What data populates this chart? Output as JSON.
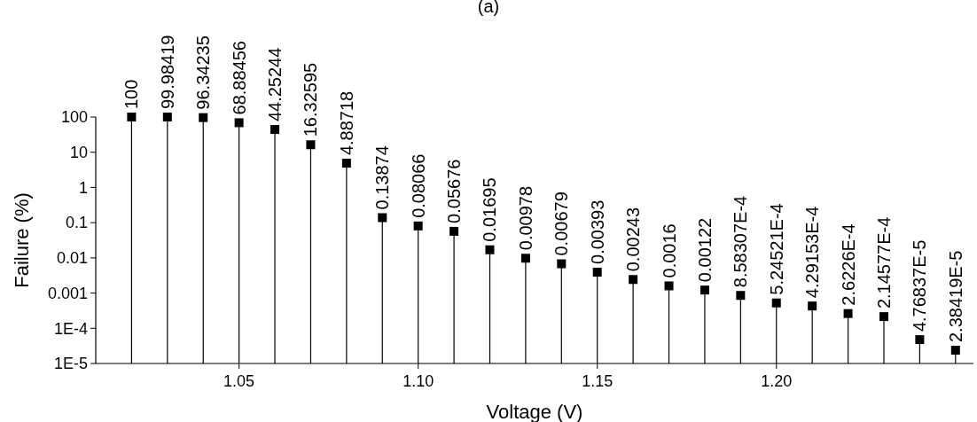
{
  "chart_data": {
    "type": "lollipop",
    "title": "(a)",
    "xlabel": "Voltage (V)",
    "ylabel": "Failure (%)",
    "log": "y",
    "marker": "square",
    "color": "#000000",
    "x": [
      1.02,
      1.03,
      1.04,
      1.05,
      1.06,
      1.07,
      1.08,
      1.09,
      1.1,
      1.11,
      1.12,
      1.13,
      1.14,
      1.15,
      1.16,
      1.17,
      1.18,
      1.19,
      1.2,
      1.21,
      1.22,
      1.23,
      1.24,
      1.25
    ],
    "values": [
      100,
      99.98419,
      96.34235,
      68.88456,
      44.25244,
      16.32595,
      4.88718,
      0.13874,
      0.08066,
      0.05676,
      0.01695,
      0.00978,
      0.00679,
      0.00393,
      0.00243,
      0.0016,
      0.00122,
      0.000858307,
      0.000524521,
      0.000429153,
      0.00026226,
      0.000214577,
      4.76837e-05,
      2.38419e-05
    ],
    "value_labels": [
      "100",
      "99.98419",
      "96.34235",
      "68.88456",
      "44.25244",
      "16.32595",
      "4.88718",
      "0.13874",
      "0.08066",
      "0.05676",
      "0.01695",
      "0.00978",
      "0.00679",
      "0.00393",
      "0.00243",
      "0.0016",
      "0.00122",
      "8.58307E-4",
      "5.24521E-4",
      "4.29153E-4",
      "2.6226E-4",
      "2.14577E-4",
      "4.76837E-5",
      "2.38419E-5"
    ],
    "xlim": [
      1.01,
      1.255
    ],
    "xticks": [
      {
        "value": 1.05,
        "label": "1.05"
      },
      {
        "value": 1.1,
        "label": "1.10"
      },
      {
        "value": 1.15,
        "label": "1.15"
      },
      {
        "value": 1.2,
        "label": "1.20"
      }
    ],
    "ylim": [
      1e-05,
      100
    ],
    "yticks": [
      {
        "value": 1e-05,
        "label": "1E-5"
      },
      {
        "value": 0.0001,
        "label": "1E-4"
      },
      {
        "value": 0.001,
        "label": "0.001"
      },
      {
        "value": 0.01,
        "label": "0.01"
      },
      {
        "value": 0.1,
        "label": "0.1"
      },
      {
        "value": 1,
        "label": "1"
      },
      {
        "value": 10,
        "label": "10"
      },
      {
        "value": 100,
        "label": "100"
      }
    ]
  }
}
